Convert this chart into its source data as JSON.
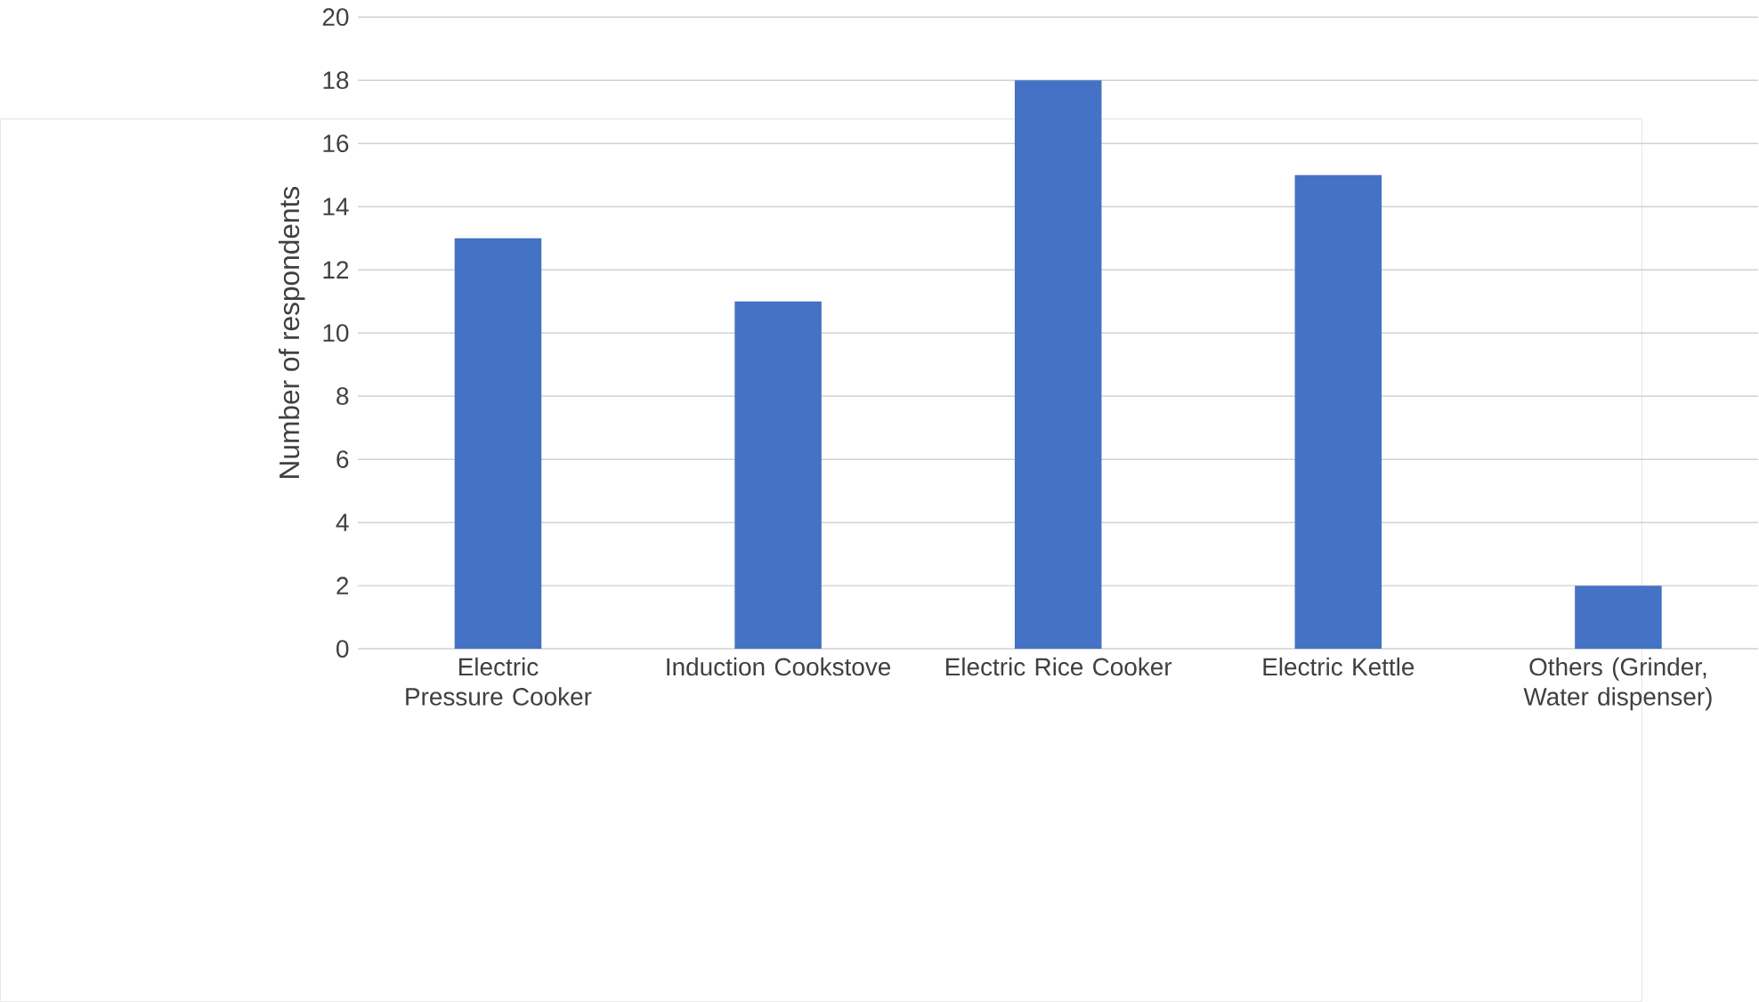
{
  "chart_data": {
    "type": "bar",
    "categories": [
      "Electric Pressure Cooker",
      "Induction Cookstove",
      "Electric Rice Cooker",
      "Electric Kettle",
      "Others (Grinder, Water dispenser)"
    ],
    "values": [
      13,
      11,
      18,
      15,
      2
    ],
    "color": "#4472c4",
    "ylabel": "Number of respondents",
    "ylim": [
      0,
      20
    ],
    "yticks": [
      0,
      2,
      4,
      6,
      8,
      10,
      12,
      14,
      16,
      18,
      20
    ],
    "grid": "y"
  }
}
